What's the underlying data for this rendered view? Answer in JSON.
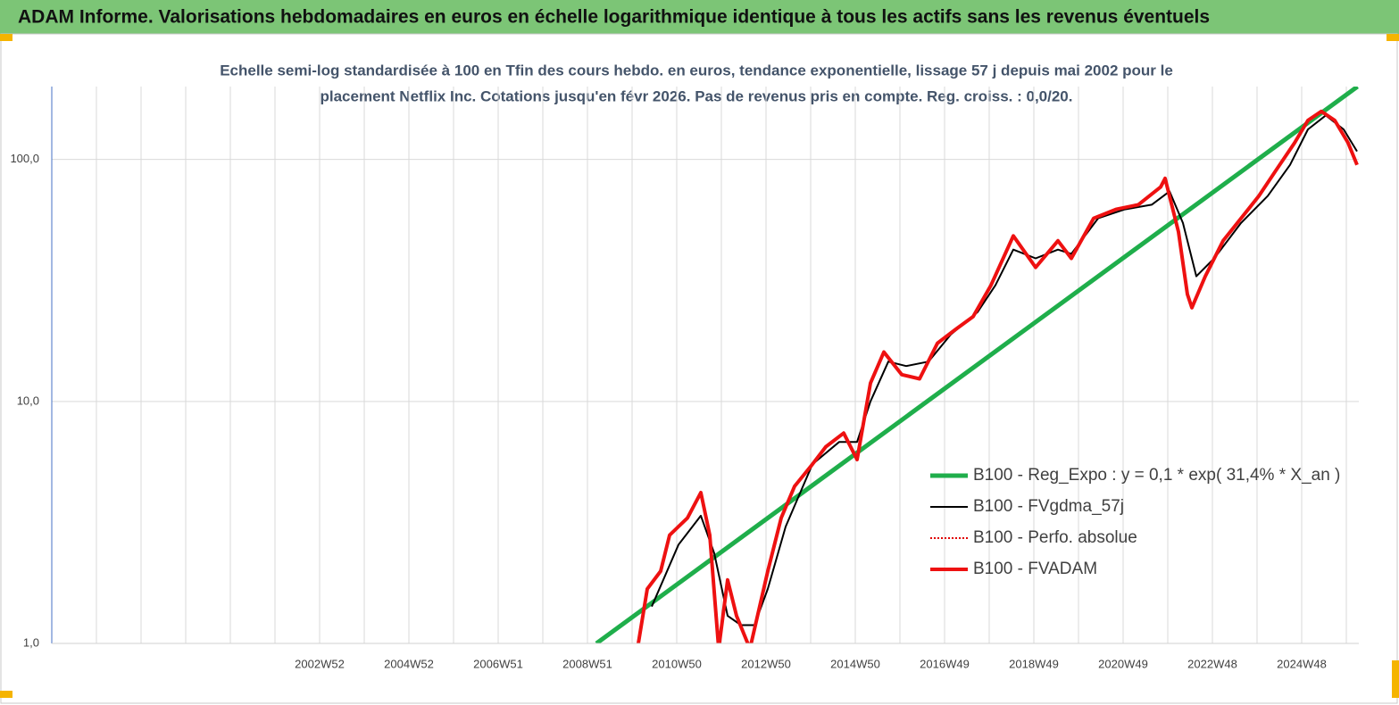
{
  "chart_data": {
    "type": "line",
    "title": "ADAM Informe. Valorisations hebdomadaires en euros en échelle logarithmique identique à tous les actifs sans les revenus éventuels",
    "subtitle": [
      "Echelle semi-log standardisée à 100 en Tfin des cours hebdo. en euros, tendance exponentielle, lissage 57 j depuis mai 2002 pour le",
      "placement Netflix Inc. Cotations jusqu'en févr 2026.  Pas de revenus pris en compte. Reg. croiss. : 0,0/20."
    ],
    "ylog": true,
    "grid": true,
    "xlim": [
      1997,
      2026.28
    ],
    "ylim": [
      1,
      200
    ],
    "yticks": [
      {
        "value": 1,
        "label": "1,0"
      },
      {
        "value": 10,
        "label": "10,0"
      },
      {
        "value": 100,
        "label": "100,0"
      }
    ],
    "xticks": [
      {
        "value": 1998,
        "label": null
      },
      {
        "value": 1999,
        "label": null
      },
      {
        "value": 2000,
        "label": null
      },
      {
        "value": 2001,
        "label": null
      },
      {
        "value": 2002,
        "label": null
      },
      {
        "value": 2003,
        "label": "2002W52"
      },
      {
        "value": 2004,
        "label": null
      },
      {
        "value": 2005,
        "label": "2004W52"
      },
      {
        "value": 2006,
        "label": null
      },
      {
        "value": 2007,
        "label": "2006W51"
      },
      {
        "value": 2008,
        "label": null
      },
      {
        "value": 2009,
        "label": "2008W51"
      },
      {
        "value": 2010,
        "label": null
      },
      {
        "value": 2011,
        "label": "2010W50"
      },
      {
        "value": 2012,
        "label": null
      },
      {
        "value": 2013,
        "label": "2012W50"
      },
      {
        "value": 2014,
        "label": null
      },
      {
        "value": 2015,
        "label": "2014W50"
      },
      {
        "value": 2016,
        "label": null
      },
      {
        "value": 2017,
        "label": "2016W49"
      },
      {
        "value": 2018,
        "label": null
      },
      {
        "value": 2019,
        "label": "2018W49"
      },
      {
        "value": 2020,
        "label": null
      },
      {
        "value": 2021,
        "label": "2020W49"
      },
      {
        "value": 2022,
        "label": null
      },
      {
        "value": 2023,
        "label": "2022W48"
      },
      {
        "value": 2024,
        "label": null
      },
      {
        "value": 2025,
        "label": "2024W48"
      },
      {
        "value": 2026,
        "label": null
      }
    ],
    "series": [
      {
        "name": "B100 - Reg_Expo : y = 0,1 * exp( 31,4% *  X_an )",
        "color": "#1fae4b",
        "width": 5,
        "dash": null,
        "x": [
          2009.2,
          2026.25
        ],
        "values": [
          1,
          200
        ]
      },
      {
        "name": "B100 - FVgdma_57j",
        "color": "#000000",
        "width": 2,
        "dash": null,
        "x": [
          2010.44,
          2011.04,
          2011.54,
          2011.84,
          2012.14,
          2012.44,
          2012.74,
          2013.04,
          2013.44,
          2014.04,
          2014.64,
          2015.04,
          2015.34,
          2015.74,
          2016.14,
          2016.64,
          2017.14,
          2017.74,
          2018.14,
          2018.54,
          2019.04,
          2019.54,
          2019.84,
          2020.44,
          2021.04,
          2021.64,
          2022.04,
          2022.34,
          2022.64,
          2023.04,
          2023.64,
          2024.24,
          2024.74,
          2025.14,
          2025.54,
          2025.94,
          2026.24
        ],
        "values": [
          1.42,
          2.56,
          3.37,
          2.36,
          1.3,
          1.19,
          1.19,
          1.68,
          3.04,
          5.5,
          6.8,
          6.8,
          10,
          14.6,
          14.0,
          14.6,
          18.9,
          23.4,
          30.2,
          42.4,
          39,
          42.4,
          40.7,
          57.1,
          62.2,
          65,
          73.8,
          54.6,
          32.9,
          39,
          54.6,
          70.6,
          95,
          133,
          152,
          133,
          108
        ]
      },
      {
        "name": "B100 - Perfo. absolue",
        "color": "#e00000",
        "width": 2,
        "dash": "2 2",
        "x": [
          2010.14,
          2010.34,
          2010.64,
          2010.84,
          2011.24,
          2011.54,
          2011.74,
          2011.94,
          2012.14,
          2012.34,
          2012.64,
          2013.04,
          2013.34,
          2013.64,
          2014.04,
          2014.34,
          2014.74,
          2015.04,
          2015.34,
          2015.64,
          2016.04,
          2016.44,
          2016.84,
          2017.24,
          2017.64,
          2018.04,
          2018.54,
          2019.04,
          2019.54,
          2019.84,
          2020.34,
          2020.84,
          2021.34,
          2021.84,
          2021.94,
          2022.24,
          2022.44,
          2022.54,
          2022.84,
          2023.24,
          2023.64,
          2024.04,
          2024.44,
          2024.84,
          2025.14,
          2025.44,
          2025.74,
          2026.04,
          2026.24
        ],
        "values": [
          1.0,
          1.68,
          1.99,
          2.8,
          3.3,
          4.2,
          2.8,
          0.95,
          1.83,
          1.3,
          0.95,
          1.99,
          3.3,
          4.46,
          5.5,
          6.5,
          7.4,
          5.75,
          11.9,
          16.0,
          12.9,
          12.4,
          17.4,
          19.8,
          22.4,
          30.2,
          48.3,
          35.8,
          46.1,
          39.0,
          57.1,
          62.2,
          65,
          76.9,
          83.5,
          50.2,
          27.7,
          24.4,
          32.9,
          46.1,
          57,
          70.6,
          91,
          117,
          145,
          158,
          145,
          117,
          95
        ]
      },
      {
        "name": "B100 - FVADAM",
        "color": "#ee1111",
        "width": 4,
        "dash": null,
        "x": [
          2010.14,
          2010.34,
          2010.64,
          2010.84,
          2011.24,
          2011.54,
          2011.74,
          2011.94,
          2012.14,
          2012.34,
          2012.64,
          2013.04,
          2013.34,
          2013.64,
          2014.04,
          2014.34,
          2014.74,
          2015.04,
          2015.34,
          2015.64,
          2016.04,
          2016.44,
          2016.84,
          2017.24,
          2017.64,
          2018.04,
          2018.54,
          2019.04,
          2019.54,
          2019.84,
          2020.34,
          2020.84,
          2021.34,
          2021.84,
          2021.94,
          2022.24,
          2022.44,
          2022.54,
          2022.84,
          2023.24,
          2023.64,
          2024.04,
          2024.44,
          2024.84,
          2025.14,
          2025.44,
          2025.74,
          2026.04,
          2026.24
        ],
        "values": [
          1.0,
          1.68,
          1.99,
          2.8,
          3.3,
          4.2,
          2.8,
          0.95,
          1.83,
          1.3,
          0.95,
          1.99,
          3.3,
          4.46,
          5.5,
          6.5,
          7.4,
          5.75,
          11.9,
          16.0,
          12.9,
          12.4,
          17.4,
          19.8,
          22.4,
          30.2,
          48.3,
          35.8,
          46.1,
          39.0,
          57.1,
          62.2,
          65,
          76.9,
          83.5,
          50.2,
          27.7,
          24.4,
          32.9,
          46.1,
          57,
          70.6,
          91,
          117,
          145,
          158,
          145,
          117,
          95
        ]
      }
    ]
  }
}
